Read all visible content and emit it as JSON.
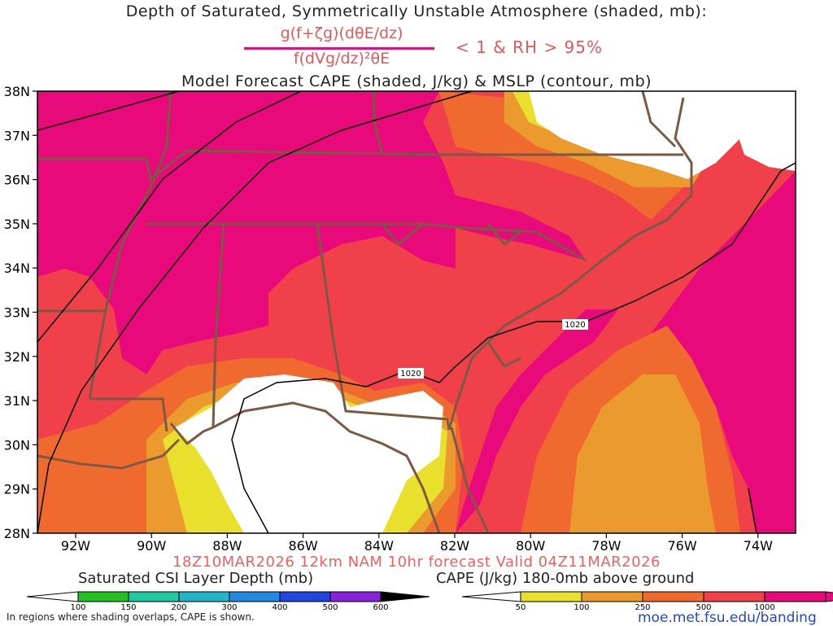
{
  "titles": {
    "line1": "Depth of Saturated, Symmetrically Unstable Atmosphere (shaded, mb):",
    "numerator": "g(f+ζg)(dθE/dz)",
    "denominator": "f(dVg/dz)²θE",
    "condition": "< 1 & RH > 95%",
    "line3": "Model Forecast CAPE (shaded, J/kg) & MSLP (contour, mb)"
  },
  "forecast": "18Z10MAR2026 12km NAM 10hr forecast Valid 04Z11MAR2026",
  "map": {
    "lat_labels": [
      "38N",
      "37N",
      "36N",
      "35N",
      "34N",
      "33N",
      "32N",
      "31N",
      "30N",
      "29N",
      "28N"
    ],
    "lon_labels": [
      "92W",
      "90W",
      "88W",
      "86W",
      "84W",
      "82W",
      "80W",
      "78W",
      "76W",
      "74W"
    ],
    "contour_labels": [
      "1020",
      "1020"
    ],
    "colors": {
      "cape_1000": "#e8097b",
      "cape_500": "#f0414a",
      "cape_250": "#f06a30",
      "cape_100": "#eb9b2d",
      "cape_50": "#e8e02c",
      "border": "#7a5a45"
    }
  },
  "legend_csi": {
    "title": "Saturated CSI Layer Depth (mb)",
    "ticks": [
      "100",
      "150",
      "200",
      "300",
      "400",
      "500",
      "600"
    ],
    "colors": [
      "#22c022",
      "#22c8a0",
      "#22b4c8",
      "#2288e0",
      "#2244e0",
      "#8822d8",
      "#000000"
    ]
  },
  "legend_cape": {
    "title": "CAPE (J/kg) 180-0mb above ground",
    "ticks": [
      "50",
      "100",
      "250",
      "500",
      "1000"
    ],
    "colors": [
      "#e8e02c",
      "#eb9b2d",
      "#f06a30",
      "#f0414a",
      "#e8097b"
    ]
  },
  "note": "In regions where shading overlaps, CAPE is shown.",
  "site": "moe.met.fsu.edu/banding"
}
